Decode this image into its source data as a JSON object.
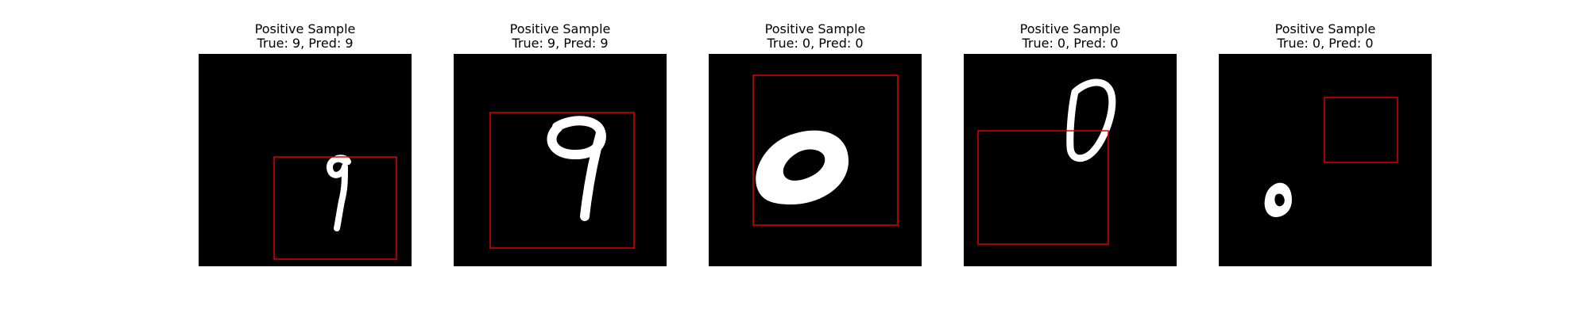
{
  "panels": [
    {
      "title": "Positive Sample",
      "subtitle": "True: 9, Pred: 9",
      "digit": "9"
    },
    {
      "title": "Positive Sample",
      "subtitle": "True: 9, Pred: 9",
      "digit": "9"
    },
    {
      "title": "Positive Sample",
      "subtitle": "True: 0, Pred: 0",
      "digit": "0"
    },
    {
      "title": "Positive Sample",
      "subtitle": "True: 0, Pred: 0",
      "digit": "0"
    },
    {
      "title": "Positive Sample",
      "subtitle": "True: 0, Pred: 0",
      "digit": "0"
    }
  ],
  "colors": {
    "background": "#000000",
    "digit": "#ffffff",
    "box": "#e00000"
  }
}
